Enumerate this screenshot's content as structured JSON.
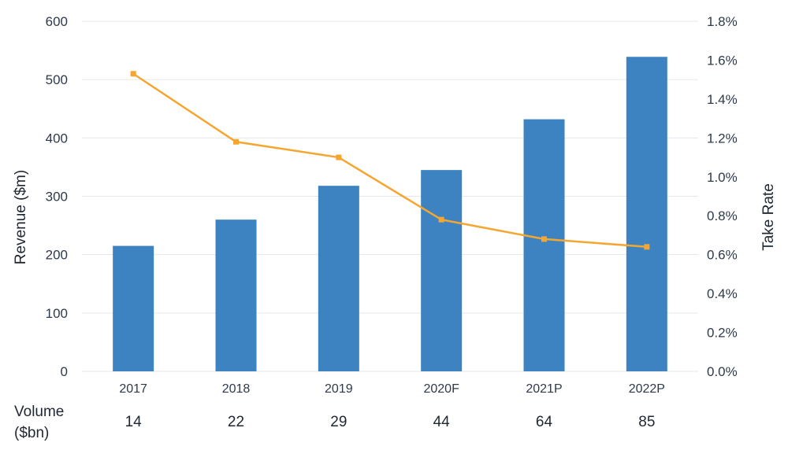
{
  "chart_data": {
    "type": "bar",
    "categories": [
      "2017",
      "2018",
      "2019",
      "2020F",
      "2021P",
      "2022P"
    ],
    "series": [
      {
        "type": "bar",
        "axis": "left",
        "values": [
          215,
          260,
          318,
          345,
          432,
          539
        ]
      },
      {
        "type": "line",
        "axis": "right",
        "values": [
          1.53,
          1.18,
          1.1,
          0.78,
          0.68,
          0.64
        ]
      }
    ],
    "ylabel": "Revenue ($m)",
    "y2label": "Take Rate",
    "ylim": [
      0,
      600
    ],
    "y2lim": [
      0,
      1.8
    ],
    "yticks": [
      "0",
      "100",
      "200",
      "300",
      "400",
      "500",
      "600"
    ],
    "y2ticks": [
      "0.0%",
      "0.2%",
      "0.4%",
      "0.6%",
      "0.8%",
      "1.0%",
      "1.2%",
      "1.4%",
      "1.6%",
      "1.8%"
    ],
    "grid": true,
    "colors": {
      "bar": "#3d83c2",
      "line": "#f5a630",
      "grid": "#e3e7ec"
    },
    "volume": {
      "label_line1": "Volume",
      "label_line2": "($bn)",
      "values": [
        "14",
        "22",
        "29",
        "44",
        "64",
        "85"
      ]
    }
  }
}
